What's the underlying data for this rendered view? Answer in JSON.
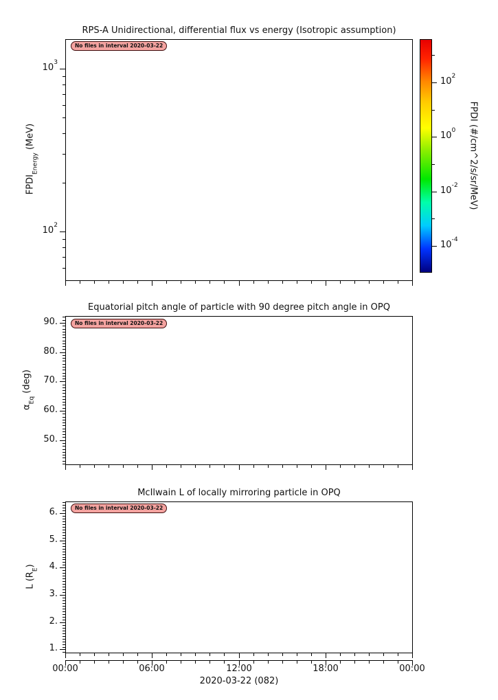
{
  "figure": {
    "background": "#ffffff",
    "annotation": {
      "text": "No files in interval 2020-03-22",
      "fill": "#f4a3a0",
      "border_color": "#3c0c0c"
    },
    "x_axis": {
      "tick_labels": [
        "00:00",
        "06:00",
        "12:00",
        "18:00",
        "00:00"
      ],
      "date_label": "2020-03-22 (082)",
      "hours": 24,
      "major_every": 6,
      "minor_every": 1
    },
    "panels": [
      {
        "title": "RPS-A Unidirectional, differential flux vs energy (Isotropic assumption)",
        "y_label": "FPDI_{Energy} (MeV)",
        "y_scale": "log",
        "y_min": 50.2,
        "y_max": 1519,
        "y_major": [
          {
            "value": 1000,
            "label": "10^{3}"
          },
          {
            "value": 100,
            "label": "10^{2}"
          }
        ]
      },
      {
        "title": "Equatorial pitch angle of particle with 90 degree pitch angle in OPQ",
        "y_label": "α_{Eq} (deg)",
        "y_scale": "linear",
        "y_min": 41.73,
        "y_max": 92.34,
        "y_minor_step": 1,
        "y_major": [
          {
            "value": 90,
            "label": "90."
          },
          {
            "value": 80,
            "label": "80."
          },
          {
            "value": 70,
            "label": "70."
          },
          {
            "value": 60,
            "label": "60."
          },
          {
            "value": 50,
            "label": "50."
          }
        ]
      },
      {
        "title": "McIlwain L of locally mirroring particle in OPQ",
        "y_label": "L (R_{E})",
        "y_scale": "linear",
        "y_min": 0.886,
        "y_max": 6.428,
        "y_minor_step": 0.1,
        "y_major": [
          {
            "value": 6,
            "label": "6."
          },
          {
            "value": 5,
            "label": "5."
          },
          {
            "value": 4,
            "label": "4."
          },
          {
            "value": 3,
            "label": "3."
          },
          {
            "value": 2,
            "label": "2."
          },
          {
            "value": 1,
            "label": "1."
          }
        ]
      }
    ],
    "colorbar": {
      "label": "FPDI (#/cm^2/s/sr/MeV)",
      "scale_top_exp": 3.59,
      "scale_bottom_exp": -4.96,
      "major_ticks": [
        {
          "exp": 2,
          "label": "10^{2}"
        },
        {
          "exp": 0,
          "label": "10^{0}"
        },
        {
          "exp": -2,
          "label": "10^{-2}"
        },
        {
          "exp": -4,
          "label": "10^{-4}"
        }
      ],
      "minor_tick_exps": [
        3,
        1,
        -1,
        -3
      ],
      "gradient": [
        "#000080",
        "#0033ff",
        "#00ccff",
        "#00ffaa",
        "#00e800",
        "#88ee00",
        "#ffff00",
        "#ffcc00",
        "#ff8800",
        "#ff2200",
        "#e80000"
      ]
    }
  },
  "chart_data": [
    {
      "type": "line",
      "title": "RPS-A Unidirectional, differential flux vs energy (Isotropic assumption)",
      "xlabel": "2020-03-22 (082)",
      "ylabel": "FPDI_Energy (MeV)",
      "x_tick_labels": [
        "00:00",
        "06:00",
        "12:00",
        "18:00",
        "00:00"
      ],
      "x_range_hours": [
        0,
        24
      ],
      "y_scale": "log",
      "ylim": [
        50,
        1519
      ],
      "y_tick_labels": [
        "10^2",
        "10^3"
      ],
      "series": [],
      "no_data_note": "No files in interval 2020-03-22",
      "colorbar": {
        "label": "FPDI (#/cm^2/s/sr/MeV)",
        "scale": "log",
        "tick_labels": [
          "10^-4",
          "10^-2",
          "10^0",
          "10^2"
        ],
        "colormap": "jet"
      }
    },
    {
      "type": "line",
      "title": "Equatorial pitch angle of particle with 90 degree pitch angle in OPQ",
      "xlabel": "2020-03-22 (082)",
      "ylabel": "α_Eq (deg)",
      "x_tick_labels": [
        "00:00",
        "06:00",
        "12:00",
        "18:00",
        "00:00"
      ],
      "y_scale": "linear",
      "ylim": [
        41.7,
        92.3
      ],
      "y_ticks": [
        50,
        60,
        70,
        80,
        90
      ],
      "series": [],
      "no_data_note": "No files in interval 2020-03-22"
    },
    {
      "type": "line",
      "title": "McIlwain L of locally mirroring particle in OPQ",
      "xlabel": "2020-03-22 (082)",
      "ylabel": "L (R_E)",
      "x_tick_labels": [
        "00:00",
        "06:00",
        "12:00",
        "18:00",
        "00:00"
      ],
      "y_scale": "linear",
      "ylim": [
        0.89,
        6.43
      ],
      "y_ticks": [
        1,
        2,
        3,
        4,
        5,
        6
      ],
      "series": [],
      "no_data_note": "No files in interval 2020-03-22"
    }
  ]
}
